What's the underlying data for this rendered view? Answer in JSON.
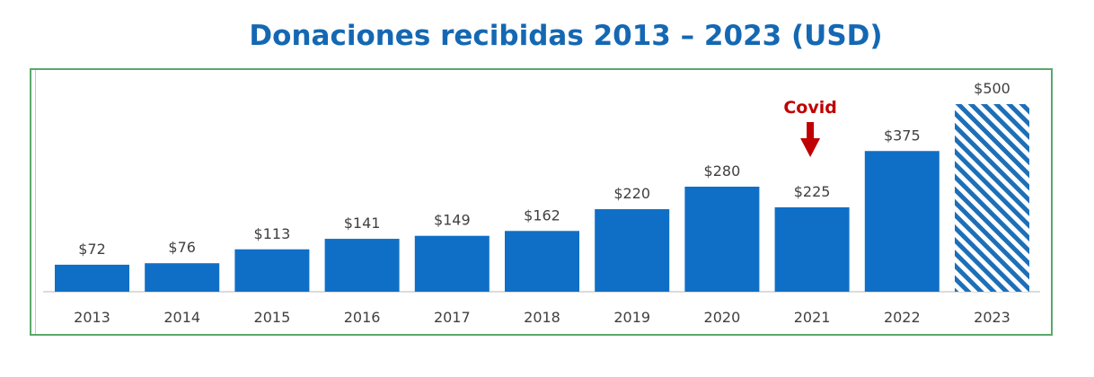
{
  "chart_data": {
    "type": "bar",
    "title": "Donaciones recibidas 2013 – 2023 (USD)",
    "xlabel": "",
    "ylabel": "",
    "categories": [
      "2013",
      "2014",
      "2015",
      "2016",
      "2017",
      "2018",
      "2019",
      "2020",
      "2021",
      "2022",
      "2023"
    ],
    "values": [
      72,
      76,
      113,
      141,
      149,
      162,
      220,
      280,
      225,
      375,
      500
    ],
    "data_labels": [
      "$72",
      "$76",
      "$113",
      "$141",
      "$149",
      "$162",
      "$220",
      "$280",
      "$225",
      "$375",
      "$500"
    ],
    "projected": [
      false,
      false,
      false,
      false,
      false,
      false,
      false,
      false,
      false,
      false,
      true
    ],
    "ylim": [
      0,
      500
    ],
    "grid": false,
    "legend": "none",
    "annotation": {
      "text": "Covid",
      "category": "2021",
      "color": "#c00000"
    },
    "colors": {
      "bar": "#0f6fc6",
      "hatch": "#1d6fb8",
      "title": "#1468b3",
      "frame": "#5aa86b"
    }
  }
}
